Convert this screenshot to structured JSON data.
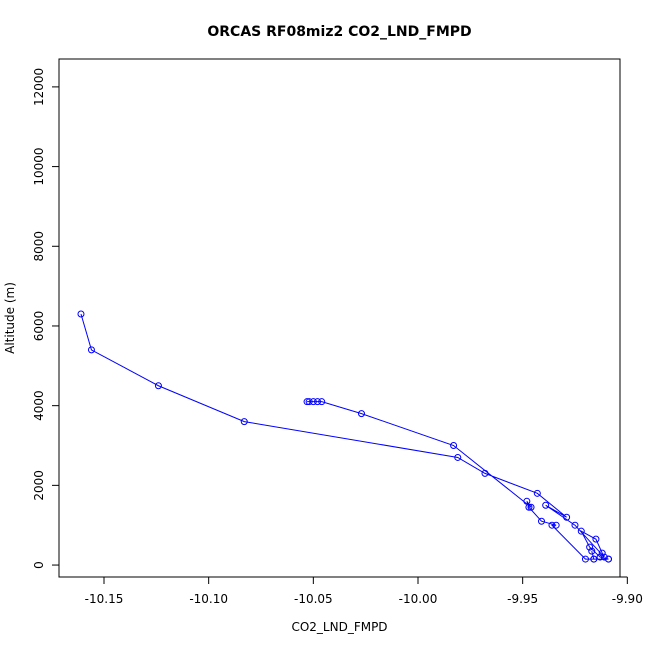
{
  "chart_data": {
    "type": "line",
    "title": "ORCAS RF08miz2 CO2_LND_FMPD",
    "xlabel": "CO2_LND_FMPD",
    "ylabel": "Altitude (m)",
    "xlim": [
      -10.1715,
      -9.9035
    ],
    "ylim": [
      -300,
      12700
    ],
    "xticks": [
      -10.15,
      -10.1,
      -10.05,
      -10.0,
      -9.95,
      -9.9
    ],
    "xtick_labels": [
      "-10.15",
      "-10.10",
      "-10.05",
      "-10.00",
      "-9.95",
      "-9.90"
    ],
    "yticks": [
      0,
      2000,
      4000,
      6000,
      8000,
      10000,
      12000
    ],
    "ytick_labels": [
      "0",
      "2000",
      "4000",
      "6000",
      "8000",
      "10000",
      "12000"
    ],
    "grid": false,
    "color": "#0000ff",
    "series": [
      {
        "points": [
          [
            -10.161,
            6300
          ],
          [
            -10.156,
            5400
          ],
          [
            -10.124,
            4500
          ],
          [
            -10.083,
            3600
          ],
          [
            -9.981,
            2700
          ],
          [
            -9.968,
            2300
          ],
          [
            -9.943,
            1800
          ],
          [
            -9.929,
            1200
          ],
          [
            -9.939,
            1500
          ],
          [
            -9.925,
            1000
          ],
          [
            -9.911,
            200
          ],
          [
            -9.912,
            300
          ],
          [
            -9.915,
            650
          ],
          [
            -9.922,
            850
          ],
          [
            -9.918,
            450
          ],
          [
            -9.913,
            200
          ],
          [
            -9.909,
            150
          ],
          [
            -9.909,
            150
          ],
          [
            -9.916,
            150
          ],
          [
            -9.917,
            350
          ],
          [
            -9.916,
            150
          ],
          [
            -9.92,
            150
          ],
          [
            -9.936,
            1000
          ],
          [
            -9.934,
            1000
          ],
          [
            -9.941,
            1100
          ],
          [
            -9.947,
            1450
          ],
          [
            -9.948,
            1600
          ],
          [
            -9.946,
            1450
          ],
          [
            -9.983,
            3000
          ],
          [
            -10.027,
            3800
          ],
          [
            -10.046,
            4100
          ],
          [
            -10.048,
            4100
          ],
          [
            -10.05,
            4100
          ],
          [
            -10.052,
            4100
          ],
          [
            -10.053,
            4100
          ]
        ]
      }
    ]
  }
}
